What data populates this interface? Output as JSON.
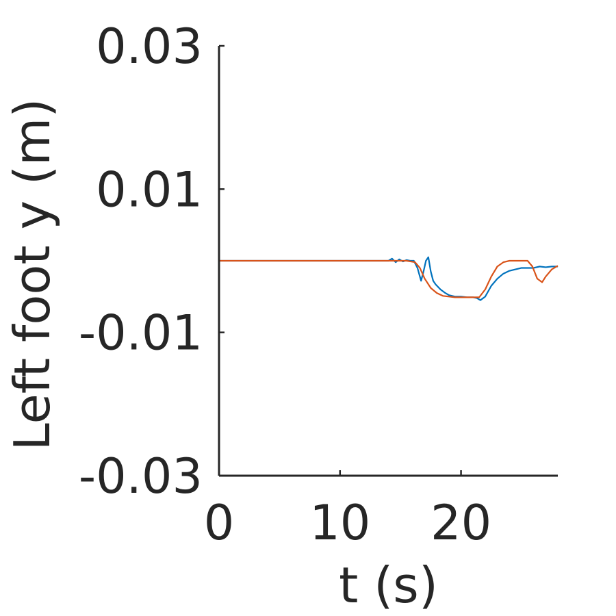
{
  "chart_data": {
    "type": "line",
    "xlabel": "t (s)",
    "ylabel": "Left foot y (m)",
    "xlim": [
      0,
      28
    ],
    "ylim": [
      -0.03,
      0.03
    ],
    "xticks": [
      0,
      10,
      20
    ],
    "xtick_labels": [
      "0",
      "10",
      "20"
    ],
    "yticks": [
      0.03,
      0.01,
      -0.01,
      -0.03
    ],
    "ytick_labels": [
      "0.03",
      "0.01",
      "-0.01",
      "-0.03"
    ],
    "grid": false,
    "series": [
      {
        "color": "#0072BD",
        "x": [
          0,
          14.0,
          14.3,
          14.6,
          14.9,
          15.2,
          15.5,
          15.8,
          16.1,
          16.4,
          16.7,
          16.9,
          17.1,
          17.3,
          17.5,
          17.7,
          17.9,
          18.3,
          18.7,
          19.0,
          19.5,
          20.0,
          20.5,
          21.0,
          21.3,
          21.6,
          22.0,
          22.5,
          23.0,
          23.5,
          24.0,
          25.0,
          26.0,
          26.5,
          27.0,
          27.5,
          28.0
        ],
        "y": [
          0.0,
          0.0,
          0.0003,
          -0.0002,
          0.0002,
          -0.0001,
          0.0001,
          0.0,
          0.0,
          -0.001,
          -0.0028,
          -0.0015,
          0.0,
          0.0005,
          -0.0015,
          -0.0028,
          -0.0033,
          -0.004,
          -0.0045,
          -0.0048,
          -0.005,
          -0.005,
          -0.0051,
          -0.0051,
          -0.0052,
          -0.0055,
          -0.005,
          -0.0035,
          -0.0025,
          -0.0018,
          -0.0014,
          -0.001,
          -0.001,
          -0.0008,
          -0.0009,
          -0.0008,
          -0.0008
        ]
      },
      {
        "color": "#D95319",
        "x": [
          0,
          15.5,
          16.2,
          16.6,
          17.0,
          17.5,
          18.0,
          18.5,
          19.0,
          19.5,
          20.0,
          20.5,
          21.0,
          21.5,
          22.0,
          22.5,
          23.0,
          23.5,
          24.0,
          25.0,
          25.5,
          25.9,
          26.3,
          26.7,
          27.0,
          27.5,
          28.0
        ],
        "y": [
          0.0,
          0.0,
          -0.0002,
          -0.001,
          -0.0025,
          -0.0038,
          -0.0045,
          -0.0049,
          -0.005,
          -0.0051,
          -0.0051,
          -0.0051,
          -0.0051,
          -0.0051,
          -0.004,
          -0.0022,
          -0.0008,
          -0.0002,
          0.0,
          0.0,
          0.0,
          -0.0008,
          -0.0025,
          -0.003,
          -0.0022,
          -0.0012,
          -0.0007
        ]
      }
    ]
  }
}
